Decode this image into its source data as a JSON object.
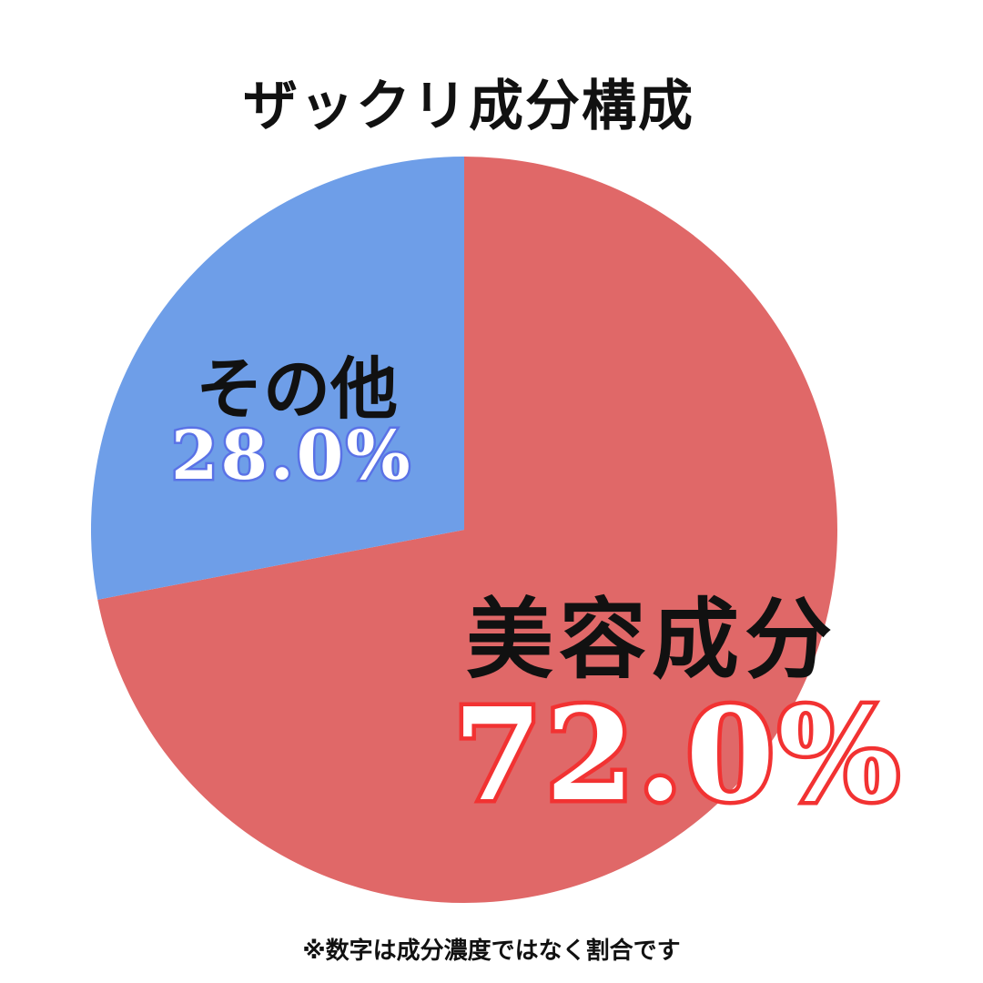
{
  "chart_data": {
    "type": "pie",
    "title": "ザックリ成分構成",
    "slices": [
      {
        "name": "美容成分",
        "value": 72.0,
        "label": "72.0%",
        "color": "#e06868"
      },
      {
        "name": "その他",
        "value": 28.0,
        "label": "28.0%",
        "color": "#6e9ee8"
      }
    ],
    "legend": "none",
    "value_label_colors": {
      "美容成分": "#f23232",
      "その他": "#5a72e6"
    }
  },
  "footnote": "※数字は成分濃度ではなく割合です"
}
